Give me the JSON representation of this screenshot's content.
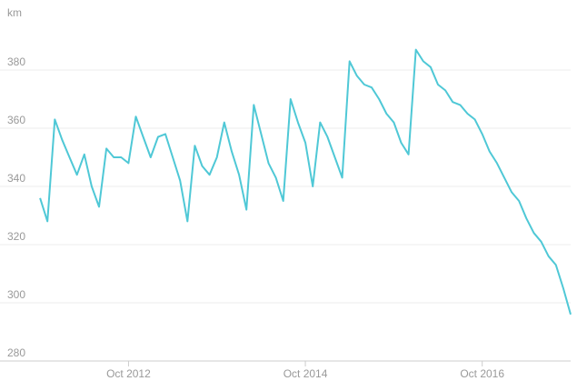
{
  "chart_data": {
    "type": "line",
    "y_label": "km",
    "x": [
      "2011-10",
      "2011-11",
      "2011-12",
      "2012-01",
      "2012-02",
      "2012-03",
      "2012-04",
      "2012-05",
      "2012-06",
      "2012-07",
      "2012-08",
      "2012-09",
      "2012-10",
      "2012-11",
      "2012-12",
      "2013-01",
      "2013-02",
      "2013-03",
      "2013-04",
      "2013-05",
      "2013-06",
      "2013-07",
      "2013-08",
      "2013-09",
      "2013-10",
      "2013-11",
      "2013-12",
      "2014-01",
      "2014-02",
      "2014-03",
      "2014-04",
      "2014-05",
      "2014-06",
      "2014-07",
      "2014-08",
      "2014-09",
      "2014-10",
      "2014-11",
      "2014-12",
      "2015-01",
      "2015-02",
      "2015-03",
      "2015-04",
      "2015-05",
      "2015-06",
      "2015-07",
      "2015-08",
      "2015-09",
      "2015-10",
      "2015-11",
      "2015-12",
      "2016-01",
      "2016-02",
      "2016-03",
      "2016-04",
      "2016-05",
      "2016-06",
      "2016-07",
      "2016-08",
      "2016-09",
      "2016-10",
      "2016-11",
      "2016-12",
      "2017-01",
      "2017-02",
      "2017-03",
      "2017-04",
      "2017-05",
      "2017-06",
      "2017-07",
      "2017-08",
      "2017-09",
      "2017-10"
    ],
    "series": [
      {
        "name": "km",
        "color": "#4fc8d6",
        "values": [
          336,
          328,
          363,
          356,
          350,
          344,
          351,
          340,
          333,
          353,
          350,
          350,
          348,
          364,
          357,
          350,
          357,
          358,
          350,
          342,
          328,
          354,
          347,
          344,
          350,
          362,
          352,
          344,
          332,
          368,
          358,
          348,
          343,
          335,
          370,
          362,
          355,
          340,
          362,
          357,
          350,
          343,
          383,
          378,
          375,
          374,
          370,
          365,
          362,
          355,
          351,
          387,
          383,
          381,
          375,
          373,
          369,
          368,
          365,
          363,
          358,
          352,
          348,
          343,
          338,
          335,
          329,
          324,
          321,
          316,
          313,
          305,
          296
        ]
      }
    ],
    "xlim": [
      "2011-09",
      "2017-10"
    ],
    "xticks": [
      {
        "value": "2012-10",
        "label": "Oct 2012"
      },
      {
        "value": "2014-10",
        "label": "Oct 2014"
      },
      {
        "value": "2016-10",
        "label": "Oct 2016"
      }
    ],
    "ylim": [
      280,
      395
    ],
    "yticks": [
      280,
      300,
      320,
      340,
      360,
      380
    ],
    "grid": true
  }
}
